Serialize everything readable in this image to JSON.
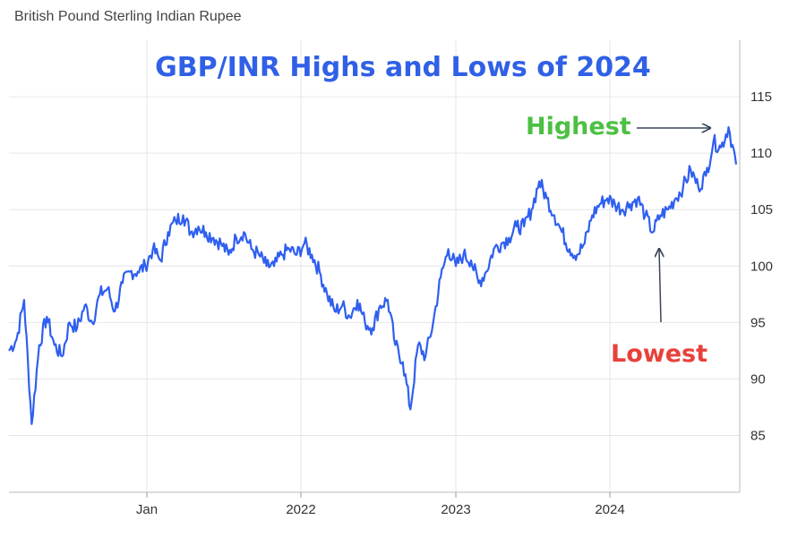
{
  "chart_data": {
    "type": "line",
    "subtitle": "British Pound Sterling Indian Rupee",
    "title": "GBP/INR Highs and Lows of 2024",
    "x_ticks": [
      "Jan",
      "2022",
      "2023",
      "2024"
    ],
    "y_ticks": [
      85,
      90,
      95,
      100,
      105,
      110,
      115
    ],
    "ylim": [
      80,
      120
    ],
    "x_range": [
      "2020-06",
      "2024-11"
    ],
    "grid": true,
    "series": [
      {
        "name": "GBP/INR",
        "color": "#2f5ff0",
        "x": [
          0,
          1,
          2,
          3,
          4,
          5,
          6,
          7,
          8,
          9,
          10,
          11,
          12,
          13,
          14,
          15,
          16,
          17,
          18,
          19,
          20,
          21,
          22,
          23,
          24,
          25,
          26,
          27,
          28,
          29,
          30,
          31,
          32,
          33,
          34,
          35,
          36,
          37,
          38,
          39,
          40,
          41,
          42,
          43,
          44,
          45,
          46,
          47,
          48,
          49,
          50,
          51,
          52,
          53,
          54,
          55,
          56,
          57,
          58,
          59,
          60,
          61,
          62,
          63,
          64,
          65,
          66,
          67,
          68,
          69,
          70,
          71,
          72,
          73,
          74,
          75,
          76,
          77,
          78,
          79,
          80,
          81,
          82,
          83,
          84,
          85,
          86,
          87,
          88,
          89,
          90,
          91,
          92,
          93,
          94,
          95,
          96
        ],
        "values": [
          92.5,
          93.5,
          97.0,
          86.0,
          93.0,
          95.5,
          93.0,
          92.0,
          95.0,
          94.5,
          96.5,
          95.0,
          97.5,
          98.0,
          96.0,
          98.5,
          99.5,
          99.5,
          100.0,
          101.5,
          100.5,
          103.0,
          104.0,
          104.5,
          103.0,
          103.5,
          103.0,
          102.5,
          102.0,
          101.0,
          102.5,
          103.0,
          101.5,
          101.0,
          100.0,
          100.0,
          101.0,
          101.5,
          101.0,
          102.0,
          101.0,
          99.5,
          97.5,
          96.0,
          96.5,
          95.5,
          97.0,
          95.0,
          94.5,
          96.5,
          97.0,
          93.0,
          91.5,
          87.3,
          93.0,
          92.0,
          95.0,
          99.0,
          101.5,
          100.0,
          101.0,
          100.5,
          98.5,
          99.5,
          101.5,
          102.0,
          102.5,
          103.5,
          103.5,
          105.0,
          107.5,
          106.0,
          104.5,
          103.0,
          101.5,
          101.0,
          102.0,
          104.5,
          105.5,
          106.0,
          105.5,
          105.0,
          105.5,
          106.0,
          104.5,
          103.0,
          104.5,
          105.0,
          106.0,
          107.0,
          108.5,
          107.0,
          108.0,
          111.0,
          110.5,
          112.3,
          109.0
        ]
      }
    ],
    "annotations": [
      {
        "label": "Highest",
        "color": "#4cc043"
      },
      {
        "label": "Lowest",
        "color": "#e8413a"
      }
    ],
    "line_color": "#2f5ff0",
    "grid_color": "#e6e6e6",
    "title_color": "#3060e6",
    "arrow_color": "#3a4658"
  }
}
